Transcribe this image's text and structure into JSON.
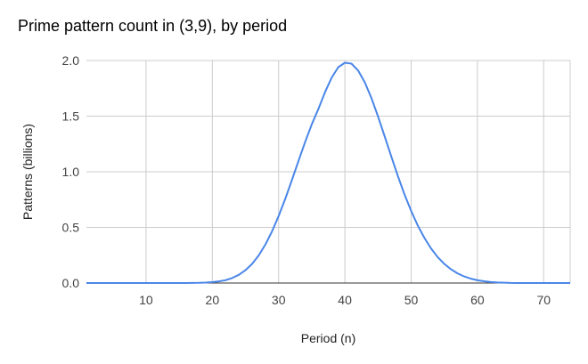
{
  "chart_data": {
    "type": "line",
    "title": "Prime pattern count in (3,9), by period",
    "xlabel": "Period (n)",
    "ylabel": "Patterns (billions)",
    "xlim": [
      1,
      74
    ],
    "ylim": [
      0,
      2.0
    ],
    "x_ticks": [
      10,
      20,
      30,
      40,
      50,
      60,
      70
    ],
    "y_ticks": [
      "0.0",
      "0.5",
      "1.0",
      "1.5",
      "2.0"
    ],
    "grid": true,
    "legend": "none",
    "colors": {
      "line": "#4a86e8",
      "grid": "#cccccc",
      "baseline": "#333333"
    },
    "series": [
      {
        "x": [
          1,
          2,
          3,
          4,
          5,
          6,
          7,
          8,
          9,
          10,
          11,
          12,
          13,
          14,
          15,
          16,
          17,
          18,
          19,
          20,
          21,
          22,
          23,
          24,
          25,
          26,
          27,
          28,
          29,
          30,
          31,
          32,
          33,
          34,
          35,
          36,
          37,
          38,
          39,
          40,
          41,
          42,
          43,
          44,
          45,
          46,
          47,
          48,
          49,
          50,
          51,
          52,
          53,
          54,
          55,
          56,
          57,
          58,
          59,
          60,
          61,
          62,
          63,
          64,
          65,
          66,
          67,
          68,
          69,
          70,
          71,
          72,
          73,
          74
        ],
        "y": [
          0,
          0,
          0,
          0,
          0,
          0,
          0,
          0,
          0,
          0,
          0,
          0,
          0,
          0,
          0,
          0,
          0.001,
          0.002,
          0.004,
          0.008,
          0.015,
          0.026,
          0.045,
          0.074,
          0.115,
          0.172,
          0.248,
          0.345,
          0.463,
          0.601,
          0.757,
          0.924,
          1.097,
          1.267,
          1.426,
          1.563,
          1.715,
          1.845,
          1.94,
          1.98,
          1.972,
          1.91,
          1.805,
          1.665,
          1.498,
          1.32,
          1.138,
          0.962,
          0.797,
          0.648,
          0.517,
          0.405,
          0.311,
          0.234,
          0.172,
          0.124,
          0.087,
          0.059,
          0.039,
          0.025,
          0.016,
          0.009,
          0.005,
          0.003,
          0.001,
          0,
          0,
          0,
          0,
          0,
          0,
          0,
          0,
          0
        ]
      }
    ]
  }
}
